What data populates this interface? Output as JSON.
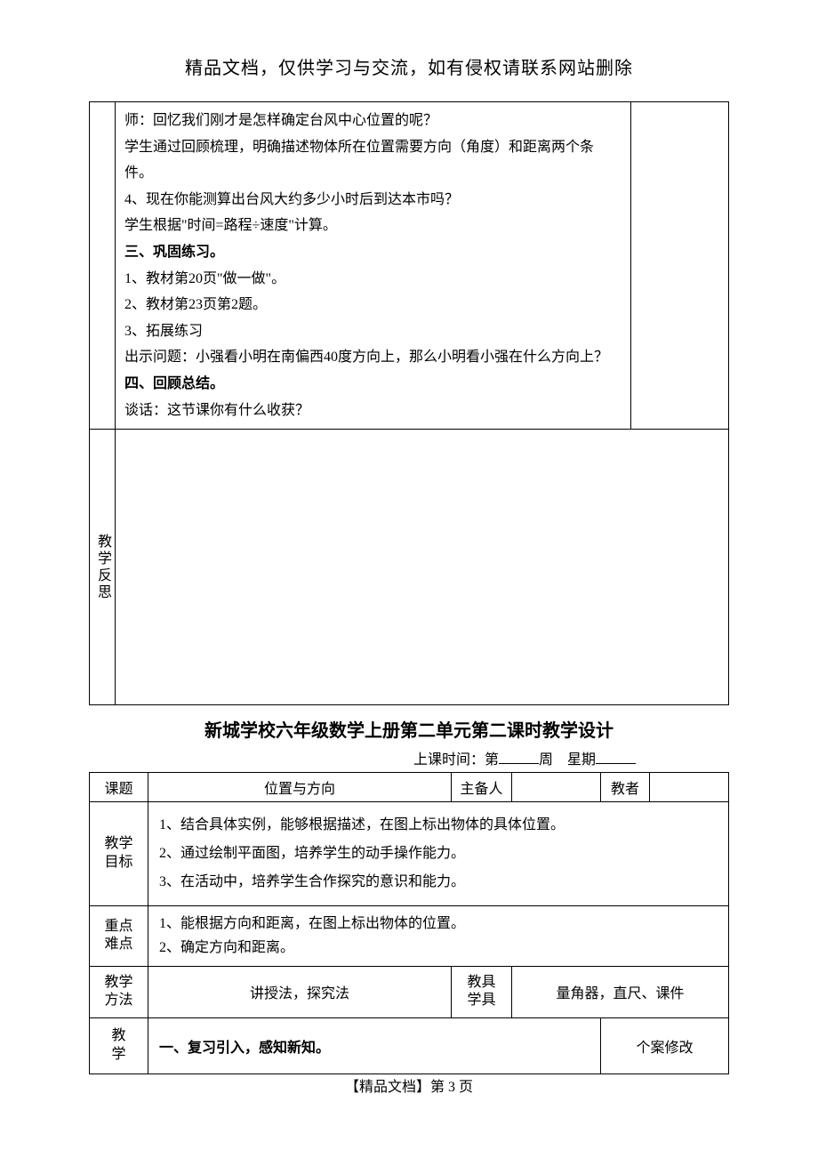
{
  "header_notice": "精品文档，仅供学习与交流，如有侵权请联系网站删除",
  "table1": {
    "content": {
      "lines": [
        {
          "text": "师：回忆我们刚才是怎样确定台风中心位置的呢？",
          "bold": false
        },
        {
          "text": "学生通过回顾梳理，明确描述物体所在位置需要方向（角度）和距离两个条件。",
          "bold": false
        },
        {
          "text": "4、现在你能测算出台风大约多少小时后到达本市吗？",
          "bold": false
        },
        {
          "text": "学生根据\"时间=路程÷速度\"计算。",
          "bold": false
        },
        {
          "text": "三、巩固练习。",
          "bold": true
        },
        {
          "text": "1、教材第20页\"做一做\"。",
          "bold": false
        },
        {
          "text": "2、教材第23页第2题。",
          "bold": false
        },
        {
          "text": "3、拓展练习",
          "bold": false
        },
        {
          "text": "出示问题：小强看小明在南偏西40度方向上，那么小明看小强在什么方向上？",
          "bold": false
        },
        {
          "text": "四、回顾总结。",
          "bold": true
        },
        {
          "text": "谈话：这节课你有什么收获？",
          "bold": false
        }
      ]
    },
    "reflect_label": "教学反思"
  },
  "section2": {
    "title": "新城学校六年级数学上册第二单元第二课时教学设计",
    "class_time_prefix": "上课时间：第",
    "class_time_mid": "周",
    "class_time_suffix": "星期",
    "labels": {
      "topic": "课题",
      "topic_val": "位置与方向",
      "preparer": "主备人",
      "teacher": "教者",
      "goals": "教学目标",
      "goals_lines": [
        "1、结合具体实例，能够根据描述，在图上标出物体的具体位置。",
        "2、通过绘制平面图，培养学生的动手操作能力。",
        "3、在活动中，培养学生合作探究的意识和能力。"
      ],
      "difficulty": "重点难点",
      "difficulty_lines": [
        "1、能根据方向和距离，在图上标出物体的位置。",
        "2、确定方向和距离。"
      ],
      "method": "教学方法",
      "method_val": "讲授法，探究法",
      "tools": "教具学具",
      "tools_val": "量角器，直尺、课件",
      "teach": "教学",
      "teach_content": "一、复习引入，感知新知。",
      "case_mod": "个案修改"
    }
  },
  "footer": "【精品文档】第 3 页"
}
